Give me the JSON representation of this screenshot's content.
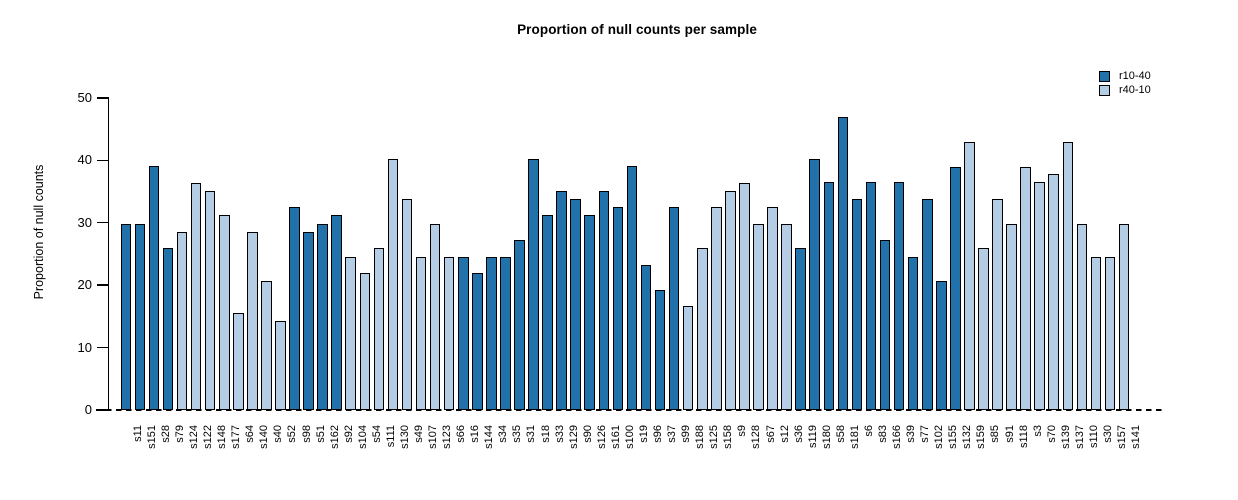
{
  "title": "Proportion of null counts per sample",
  "legend": [
    {
      "label": "r10-40",
      "color": "#2171aa"
    },
    {
      "label": "r40-10",
      "color": "#b5cce5"
    }
  ],
  "y_axis": {
    "label": "Proportion of null counts",
    "ticks": [
      0,
      10,
      20,
      30,
      40,
      50
    ]
  },
  "chart_data": {
    "type": "bar",
    "title": "Proportion of null counts per sample",
    "xlabel": "",
    "ylabel": "Proportion of null counts",
    "ylim": [
      0,
      50
    ],
    "grid": false,
    "legend_position": "top-right",
    "zero_line": "dashed",
    "series": [
      {
        "name": "r10-40",
        "color": "#2171aa"
      },
      {
        "name": "r40-10",
        "color": "#b5cce5"
      }
    ],
    "bars": [
      {
        "label": "s11",
        "value": 29.8,
        "series": "r10-40"
      },
      {
        "label": "s151",
        "value": 29.8,
        "series": "r10-40"
      },
      {
        "label": "s28",
        "value": 39.1,
        "series": "r10-40"
      },
      {
        "label": "s79",
        "value": 26.0,
        "series": "r10-40"
      },
      {
        "label": "s124",
        "value": 28.5,
        "series": "r40-10"
      },
      {
        "label": "s122",
        "value": 36.4,
        "series": "r40-10"
      },
      {
        "label": "s148",
        "value": 35.1,
        "series": "r40-10"
      },
      {
        "label": "s177",
        "value": 31.3,
        "series": "r40-10"
      },
      {
        "label": "s64",
        "value": 15.5,
        "series": "r40-10"
      },
      {
        "label": "s140",
        "value": 28.5,
        "series": "r40-10"
      },
      {
        "label": "s40",
        "value": 20.7,
        "series": "r40-10"
      },
      {
        "label": "s52",
        "value": 14.2,
        "series": "r40-10"
      },
      {
        "label": "s98",
        "value": 32.5,
        "series": "r10-40"
      },
      {
        "label": "s51",
        "value": 28.5,
        "series": "r10-40"
      },
      {
        "label": "s162",
        "value": 29.8,
        "series": "r10-40"
      },
      {
        "label": "s92",
        "value": 31.2,
        "series": "r10-40"
      },
      {
        "label": "s104",
        "value": 24.5,
        "series": "r40-10"
      },
      {
        "label": "s54",
        "value": 22.0,
        "series": "r40-10"
      },
      {
        "label": "s111",
        "value": 26.0,
        "series": "r40-10"
      },
      {
        "label": "s130",
        "value": 40.3,
        "series": "r40-10"
      },
      {
        "label": "s49",
        "value": 33.8,
        "series": "r40-10"
      },
      {
        "label": "s107",
        "value": 24.5,
        "series": "r40-10"
      },
      {
        "label": "s123",
        "value": 29.8,
        "series": "r40-10"
      },
      {
        "label": "s66",
        "value": 24.5,
        "series": "r40-10"
      },
      {
        "label": "s16",
        "value": 24.5,
        "series": "r10-40"
      },
      {
        "label": "s144",
        "value": 22.0,
        "series": "r10-40"
      },
      {
        "label": "s34",
        "value": 24.5,
        "series": "r10-40"
      },
      {
        "label": "s35",
        "value": 24.5,
        "series": "r10-40"
      },
      {
        "label": "s31",
        "value": 27.3,
        "series": "r10-40"
      },
      {
        "label": "s18",
        "value": 40.3,
        "series": "r10-40"
      },
      {
        "label": "s33",
        "value": 31.3,
        "series": "r10-40"
      },
      {
        "label": "s129",
        "value": 35.1,
        "series": "r10-40"
      },
      {
        "label": "s90",
        "value": 33.8,
        "series": "r10-40"
      },
      {
        "label": "s126",
        "value": 31.3,
        "series": "r10-40"
      },
      {
        "label": "s161",
        "value": 35.1,
        "series": "r10-40"
      },
      {
        "label": "s100",
        "value": 32.5,
        "series": "r10-40"
      },
      {
        "label": "s19",
        "value": 39.1,
        "series": "r10-40"
      },
      {
        "label": "s96",
        "value": 23.3,
        "series": "r10-40"
      },
      {
        "label": "s37",
        "value": 19.2,
        "series": "r10-40"
      },
      {
        "label": "s99",
        "value": 32.5,
        "series": "r10-40"
      },
      {
        "label": "s188",
        "value": 16.6,
        "series": "r40-10"
      },
      {
        "label": "s125",
        "value": 26.0,
        "series": "r40-10"
      },
      {
        "label": "s158",
        "value": 32.5,
        "series": "r40-10"
      },
      {
        "label": "s9",
        "value": 35.1,
        "series": "r40-10"
      },
      {
        "label": "s128",
        "value": 36.4,
        "series": "r40-10"
      },
      {
        "label": "s67",
        "value": 29.8,
        "series": "r40-10"
      },
      {
        "label": "s12",
        "value": 32.5,
        "series": "r40-10"
      },
      {
        "label": "s36",
        "value": 29.8,
        "series": "r40-10"
      },
      {
        "label": "s119",
        "value": 26.0,
        "series": "r10-40"
      },
      {
        "label": "s180",
        "value": 40.3,
        "series": "r10-40"
      },
      {
        "label": "s58",
        "value": 36.5,
        "series": "r10-40"
      },
      {
        "label": "s181",
        "value": 47.0,
        "series": "r10-40"
      },
      {
        "label": "s6",
        "value": 33.8,
        "series": "r10-40"
      },
      {
        "label": "s83",
        "value": 36.5,
        "series": "r10-40"
      },
      {
        "label": "s166",
        "value": 27.3,
        "series": "r10-40"
      },
      {
        "label": "s39",
        "value": 36.5,
        "series": "r10-40"
      },
      {
        "label": "s77",
        "value": 24.5,
        "series": "r10-40"
      },
      {
        "label": "s102",
        "value": 33.8,
        "series": "r10-40"
      },
      {
        "label": "s155",
        "value": 20.7,
        "series": "r10-40"
      },
      {
        "label": "s132",
        "value": 39.0,
        "series": "r10-40"
      },
      {
        "label": "s159",
        "value": 42.9,
        "series": "r40-10"
      },
      {
        "label": "s85",
        "value": 26.0,
        "series": "r40-10"
      },
      {
        "label": "s91",
        "value": 33.8,
        "series": "r40-10"
      },
      {
        "label": "s118",
        "value": 29.8,
        "series": "r40-10"
      },
      {
        "label": "s3",
        "value": 39.0,
        "series": "r40-10"
      },
      {
        "label": "s70",
        "value": 36.5,
        "series": "r40-10"
      },
      {
        "label": "s139",
        "value": 37.8,
        "series": "r40-10"
      },
      {
        "label": "s137",
        "value": 42.9,
        "series": "r40-10"
      },
      {
        "label": "s110",
        "value": 29.8,
        "series": "r40-10"
      },
      {
        "label": "s30",
        "value": 24.5,
        "series": "r40-10"
      },
      {
        "label": "s157",
        "value": 24.5,
        "series": "r40-10"
      },
      {
        "label": "s141",
        "value": 29.8,
        "series": "r40-10"
      }
    ]
  }
}
